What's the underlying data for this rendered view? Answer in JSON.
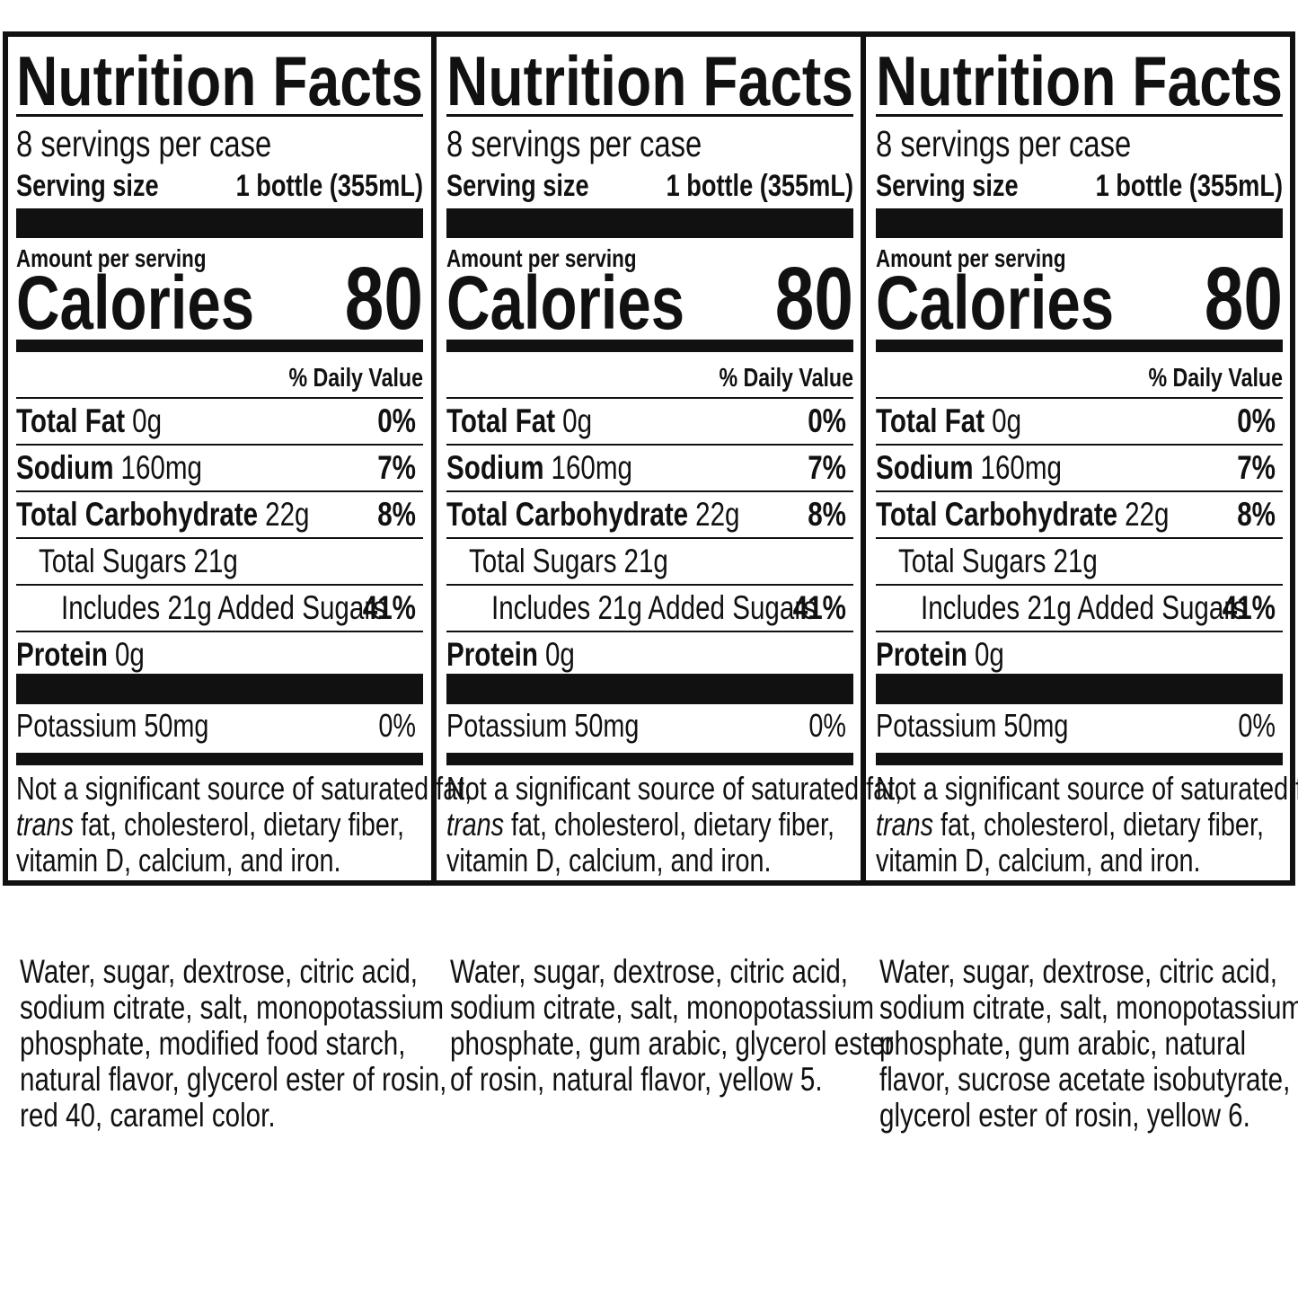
{
  "panels": [
    {
      "title": "Nutrition Facts",
      "servings": "8 servings per case",
      "serving_size_label": "Serving size",
      "serving_size_value": "1 bottle (355mL)",
      "amount_label": "Amount per serving",
      "calories_label": "Calories",
      "calories_value": "80",
      "dv_header": "% Daily Value",
      "rows": [
        {
          "name": "Total Fat",
          "amount": "0g",
          "dv": "0%"
        },
        {
          "name": "Sodium",
          "amount": "160mg",
          "dv": "7%"
        },
        {
          "name": "Total Carbohydrate",
          "amount": "22g",
          "dv": "8%"
        },
        {
          "name": "Total Sugars",
          "amount": "21g"
        },
        {
          "name": "Includes 21g Added Sugars",
          "dv": "41%"
        },
        {
          "name": "Protein",
          "amount": "0g"
        }
      ],
      "potassium": {
        "name": "Potassium 50mg",
        "dv": "0%"
      },
      "footnote": {
        "line1": "Not a significant source of saturated fat,",
        "trans": "trans",
        "line2": "fat, cholesterol, dietary fiber,",
        "line3": "vitamin D, calcium, and iron."
      },
      "ingredients": [
        "Water, sugar, dextrose, citric acid,",
        "sodium citrate, salt, monopotassium",
        "phosphate, modified food starch,",
        "natural flavor, glycerol ester of rosin,",
        "red 40, caramel color."
      ]
    },
    {
      "title": "Nutrition Facts",
      "servings": "8 servings per case",
      "serving_size_label": "Serving size",
      "serving_size_value": "1 bottle (355mL)",
      "amount_label": "Amount per serving",
      "calories_label": "Calories",
      "calories_value": "80",
      "dv_header": "% Daily Value",
      "rows": [
        {
          "name": "Total Fat",
          "amount": "0g",
          "dv": "0%"
        },
        {
          "name": "Sodium",
          "amount": "160mg",
          "dv": "7%"
        },
        {
          "name": "Total Carbohydrate",
          "amount": "22g",
          "dv": "8%"
        },
        {
          "name": "Total Sugars",
          "amount": "21g"
        },
        {
          "name": "Includes 21g Added Sugars",
          "dv": "41%"
        },
        {
          "name": "Protein",
          "amount": "0g"
        }
      ],
      "potassium": {
        "name": "Potassium 50mg",
        "dv": "0%"
      },
      "footnote": {
        "line1": "Not a significant source of saturated fat,",
        "trans": "trans",
        "line2": "fat, cholesterol, dietary fiber,",
        "line3": "vitamin D, calcium, and iron."
      },
      "ingredients": [
        "Water, sugar, dextrose, citric acid,",
        "sodium citrate, salt, monopotassium",
        "phosphate, gum arabic, glycerol ester",
        "of rosin, natural flavor, yellow 5."
      ]
    },
    {
      "title": "Nutrition Facts",
      "servings": "8 servings per case",
      "serving_size_label": "Serving size",
      "serving_size_value": "1 bottle (355mL)",
      "amount_label": "Amount per serving",
      "calories_label": "Calories",
      "calories_value": "80",
      "dv_header": "% Daily Value",
      "rows": [
        {
          "name": "Total Fat",
          "amount": "0g",
          "dv": "0%"
        },
        {
          "name": "Sodium",
          "amount": "160mg",
          "dv": "7%"
        },
        {
          "name": "Total Carbohydrate",
          "amount": "22g",
          "dv": "8%"
        },
        {
          "name": "Total Sugars",
          "amount": "21g"
        },
        {
          "name": "Includes 21g Added Sugars",
          "dv": "41%"
        },
        {
          "name": "Protein",
          "amount": "0g"
        }
      ],
      "potassium": {
        "name": "Potassium 50mg",
        "dv": "0%"
      },
      "footnote": {
        "line1": "Not a significant source of saturated fat,",
        "trans": "trans",
        "line2": "fat, cholesterol, dietary fiber,",
        "line3": "vitamin D, calcium, and iron."
      },
      "ingredients": [
        "Water, sugar, dextrose, citric acid,",
        "sodium citrate, salt, monopotassium",
        "phosphate, gum arabic, natural",
        "flavor, sucrose acetate isobutyrate,",
        "glycerol ester of rosin, yellow 6."
      ]
    }
  ]
}
